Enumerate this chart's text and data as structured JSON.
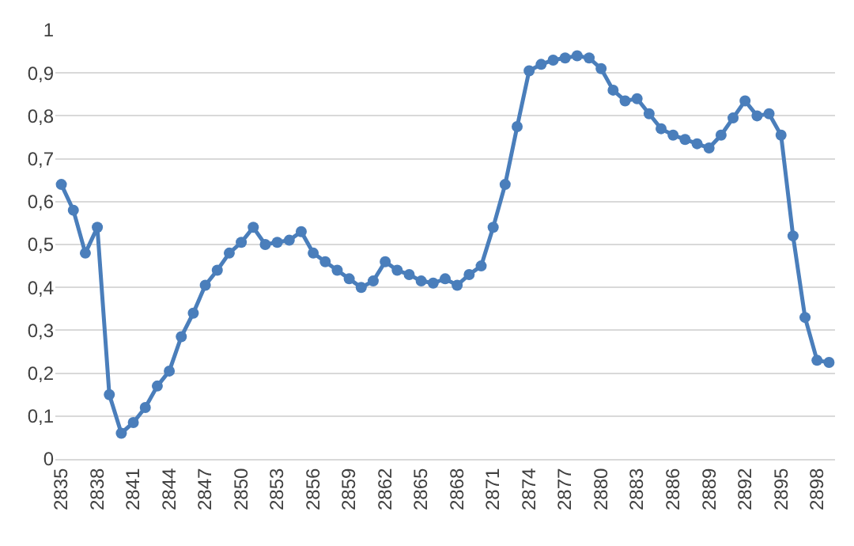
{
  "chart_data": {
    "type": "line",
    "x": [
      2835,
      2836,
      2837,
      2838,
      2839,
      2840,
      2841,
      2842,
      2843,
      2844,
      2845,
      2846,
      2847,
      2848,
      2849,
      2850,
      2851,
      2852,
      2853,
      2854,
      2855,
      2856,
      2857,
      2858,
      2859,
      2860,
      2861,
      2862,
      2863,
      2864,
      2865,
      2866,
      2867,
      2868,
      2869,
      2870,
      2871,
      2872,
      2873,
      2874,
      2875,
      2876,
      2877,
      2878,
      2879,
      2880,
      2881,
      2882,
      2883,
      2884,
      2885,
      2886,
      2887,
      2888,
      2889,
      2890,
      2891,
      2892,
      2893,
      2894,
      2895,
      2896,
      2897,
      2898,
      2899
    ],
    "series": [
      {
        "color": "#4a7ebb",
        "values": [
          0.64,
          0.58,
          0.48,
          0.54,
          0.15,
          0.06,
          0.085,
          0.12,
          0.17,
          0.205,
          0.285,
          0.34,
          0.405,
          0.44,
          0.48,
          0.505,
          0.54,
          0.5,
          0.505,
          0.51,
          0.53,
          0.48,
          0.46,
          0.44,
          0.42,
          0.4,
          0.415,
          0.46,
          0.44,
          0.43,
          0.415,
          0.41,
          0.42,
          0.405,
          0.43,
          0.45,
          0.54,
          0.64,
          0.775,
          0.905,
          0.92,
          0.93,
          0.935,
          0.94,
          0.935,
          0.91,
          0.86,
          0.835,
          0.84,
          0.805,
          0.77,
          0.755,
          0.745,
          0.735,
          0.725,
          0.755,
          0.795,
          0.835,
          0.8,
          0.805,
          0.755,
          0.52,
          0.33,
          0.23,
          0.225
        ]
      }
    ],
    "xlim": [
      2834.5,
      2899.5
    ],
    "xticks": [
      2835,
      2838,
      2841,
      2844,
      2847,
      2850,
      2853,
      2856,
      2859,
      2862,
      2865,
      2868,
      2871,
      2874,
      2877,
      2880,
      2883,
      2886,
      2889,
      2892,
      2895,
      2898
    ],
    "ylim": [
      0,
      1
    ],
    "yticks": [
      0,
      {
        "value": 0.1,
        "label": "0,1"
      },
      {
        "value": 0.2,
        "label": "0,2"
      },
      {
        "value": 0.3,
        "label": "0,3"
      },
      {
        "value": 0.4,
        "label": "0,4"
      },
      {
        "value": 0.5,
        "label": "0,5"
      },
      {
        "value": 0.6,
        "label": "0,6"
      },
      {
        "value": 0.7,
        "label": "0,7"
      },
      {
        "value": 0.8,
        "label": "0,8"
      },
      {
        "value": 0.9,
        "label": "0,9"
      },
      1
    ],
    "grid": "y",
    "marker": "circle",
    "line_style": "solid"
  }
}
